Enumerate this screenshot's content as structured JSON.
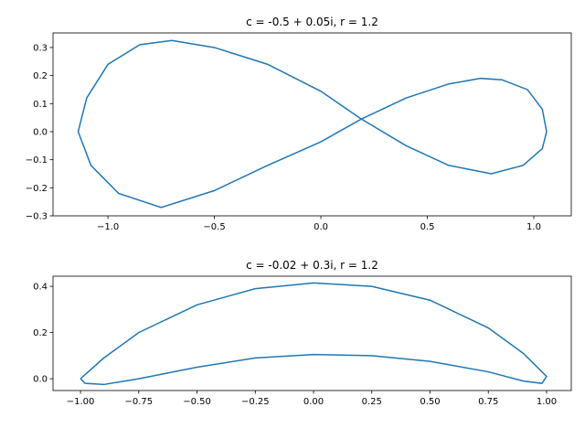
{
  "chart_data": [
    {
      "type": "line",
      "title": "c = -0.5 + 0.05i, r = 1.2",
      "color": "#1f77b4",
      "x": [
        1.06,
        1.04,
        0.97,
        0.85,
        0.75,
        0.6,
        0.4,
        0.19,
        0.0,
        -0.25,
        -0.5,
        -0.75,
        -0.95,
        -1.08,
        -1.14,
        -1.1,
        -1.0,
        -0.85,
        -0.7,
        -0.5,
        -0.25,
        0.0,
        0.19,
        0.4,
        0.6,
        0.8,
        0.95,
        1.04,
        1.06
      ],
      "values": [
        0.0,
        0.08,
        0.15,
        0.185,
        0.19,
        0.17,
        0.12,
        0.045,
        -0.036,
        -0.12,
        -0.21,
        -0.27,
        -0.22,
        -0.12,
        0.0,
        0.12,
        0.24,
        0.31,
        0.325,
        0.3,
        0.24,
        0.144,
        0.045,
        -0.05,
        -0.12,
        -0.15,
        -0.12,
        -0.06,
        0.0
      ],
      "xlim": [
        -1.258,
        1.176
      ],
      "ylim": [
        -0.3,
        0.352
      ],
      "xticks": [
        {
          "value": -1.0,
          "label": "−1.0"
        },
        {
          "value": -0.5,
          "label": "−0.5"
        },
        {
          "value": 0.0,
          "label": "0.0"
        },
        {
          "value": 0.5,
          "label": "0.5"
        },
        {
          "value": 1.0,
          "label": "1.0"
        }
      ],
      "yticks": [
        {
          "value": -0.3,
          "label": "−0.3"
        },
        {
          "value": -0.2,
          "label": "−0.2"
        },
        {
          "value": -0.1,
          "label": "−0.1"
        },
        {
          "value": 0.0,
          "label": "0.0"
        },
        {
          "value": 0.1,
          "label": "0.1"
        },
        {
          "value": 0.2,
          "label": "0.2"
        },
        {
          "value": 0.3,
          "label": "0.3"
        }
      ]
    },
    {
      "type": "line",
      "title": "c = -0.02 + 0.3i, r = 1.2",
      "color": "#1f77b4",
      "x": [
        -1.0,
        -0.9,
        -0.75,
        -0.5,
        -0.25,
        0.0,
        0.25,
        0.5,
        0.75,
        0.9,
        1.0,
        0.98,
        0.9,
        0.75,
        0.5,
        0.25,
        0.0,
        -0.25,
        -0.5,
        -0.75,
        -0.9,
        -0.98,
        -1.0
      ],
      "values": [
        0.0,
        0.09,
        0.2,
        0.32,
        0.39,
        0.415,
        0.4,
        0.34,
        0.22,
        0.11,
        0.01,
        -0.02,
        -0.01,
        0.03,
        0.075,
        0.1,
        0.105,
        0.09,
        0.05,
        0.0,
        -0.025,
        -0.02,
        0.0
      ],
      "xlim": [
        -1.118,
        1.106
      ],
      "ylim": [
        -0.051,
        0.444
      ],
      "xticks": [
        {
          "value": -1.0,
          "label": "−1.00"
        },
        {
          "value": -0.75,
          "label": "−0.75"
        },
        {
          "value": -0.5,
          "label": "−0.50"
        },
        {
          "value": -0.25,
          "label": "−0.25"
        },
        {
          "value": 0.0,
          "label": "0.00"
        },
        {
          "value": 0.25,
          "label": "0.25"
        },
        {
          "value": 0.5,
          "label": "0.50"
        },
        {
          "value": 0.75,
          "label": "0.75"
        },
        {
          "value": 1.0,
          "label": "1.00"
        }
      ],
      "yticks": [
        {
          "value": 0.0,
          "label": "0.0"
        },
        {
          "value": 0.2,
          "label": "0.2"
        },
        {
          "value": 0.4,
          "label": "0.4"
        }
      ]
    }
  ]
}
